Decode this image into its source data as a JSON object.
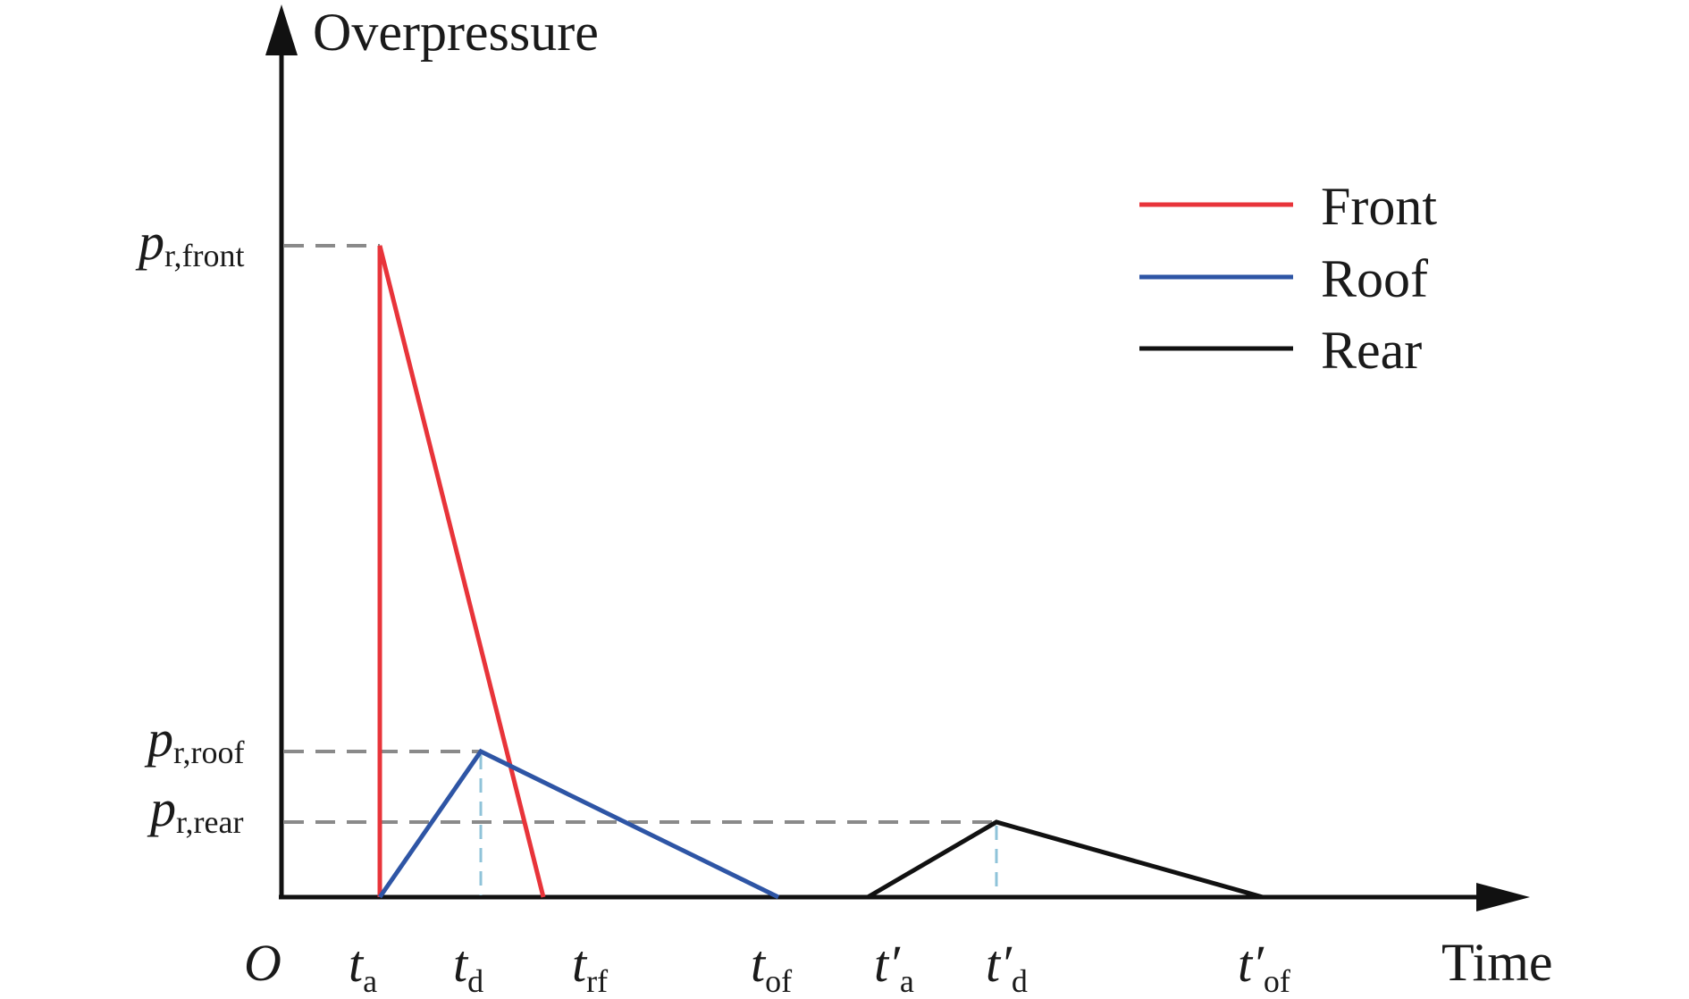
{
  "y_axis_label": "Overpressure",
  "x_axis_label": "Time",
  "origin_label": "O",
  "colors": {
    "front": "#e8343a",
    "roof": "#2e55a5",
    "rear": "#111111",
    "guide_gray": "#8a8a8a",
    "guide_blue": "#8fc3d9"
  },
  "legend": [
    {
      "key": "front",
      "label": "Front"
    },
    {
      "key": "roof",
      "label": "Roof"
    },
    {
      "key": "rear",
      "label": "Rear"
    }
  ],
  "y_labels": [
    {
      "key": "front",
      "sym": "p",
      "sub": "r,front"
    },
    {
      "key": "roof",
      "sym": "p",
      "sub": "r,roof"
    },
    {
      "key": "rear",
      "sym": "p",
      "sub": "r,rear"
    }
  ],
  "x_labels": [
    {
      "key": "ta",
      "sym": "t",
      "prime": "",
      "sub": "a"
    },
    {
      "key": "td",
      "sym": "t",
      "prime": "",
      "sub": "d"
    },
    {
      "key": "trf",
      "sym": "t",
      "prime": "",
      "sub": "rf"
    },
    {
      "key": "tof",
      "sym": "t",
      "prime": "",
      "sub": "of"
    },
    {
      "key": "ta2",
      "sym": "t",
      "prime": "′",
      "sub": "a"
    },
    {
      "key": "td2",
      "sym": "t",
      "prime": "′",
      "sub": "d"
    },
    {
      "key": "tof2",
      "sym": "t",
      "prime": "′",
      "sub": "of"
    }
  ]
}
